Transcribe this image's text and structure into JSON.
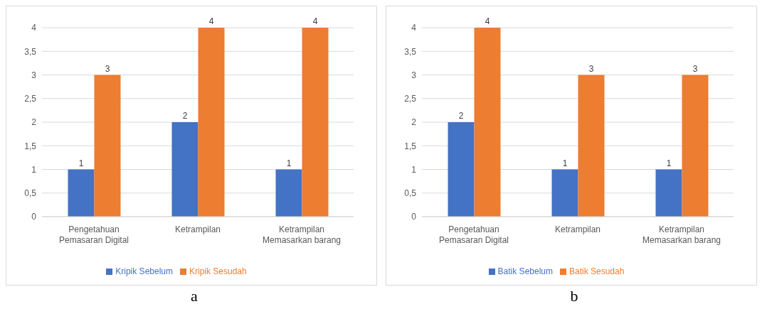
{
  "chart_data": [
    {
      "type": "bar",
      "categories": [
        "Pengetahuan Pemasaran Digital",
        "Ketrampilan",
        "Ketrampilan Memasarkan barang"
      ],
      "series": [
        {
          "name": "Kripik Sebelum",
          "color": "#4472c4",
          "values": [
            1,
            2,
            1
          ]
        },
        {
          "name": "Kripik Sesudah",
          "color": "#ed7d31",
          "values": [
            3,
            4,
            4
          ]
        }
      ],
      "ylim": [
        0,
        4
      ],
      "yticks": [
        0,
        {
          "value": 0.5,
          "label": "0,5"
        },
        1,
        {
          "value": 1.5,
          "label": "1,5"
        },
        2,
        {
          "value": 2.5,
          "label": "2,5"
        },
        3,
        {
          "value": 3.5,
          "label": "3,5"
        },
        4
      ],
      "grid": "y",
      "legend": "bottom",
      "data_labels": true,
      "annotations": [
        "a"
      ]
    },
    {
      "type": "bar",
      "categories": [
        "Pengetahuan Pemasaran Digital",
        "Ketrampilan",
        "Ketrampilan Memasarkan barang"
      ],
      "series": [
        {
          "name": "Batik Sebelum",
          "color": "#4472c4",
          "values": [
            2,
            1,
            1
          ]
        },
        {
          "name": "Batik Sesudah",
          "color": "#ed7d31",
          "values": [
            4,
            3,
            3
          ]
        }
      ],
      "ylim": [
        0,
        4
      ],
      "yticks": [
        0,
        {
          "value": 0.5,
          "label": "0,5"
        },
        1,
        {
          "value": 1.5,
          "label": "1,5"
        },
        2,
        {
          "value": 2.5,
          "label": "2,5"
        },
        3,
        {
          "value": 3.5,
          "label": "3,5"
        },
        4
      ],
      "grid": "y",
      "legend": "bottom",
      "data_labels": true,
      "annotations": [
        "b"
      ]
    }
  ]
}
